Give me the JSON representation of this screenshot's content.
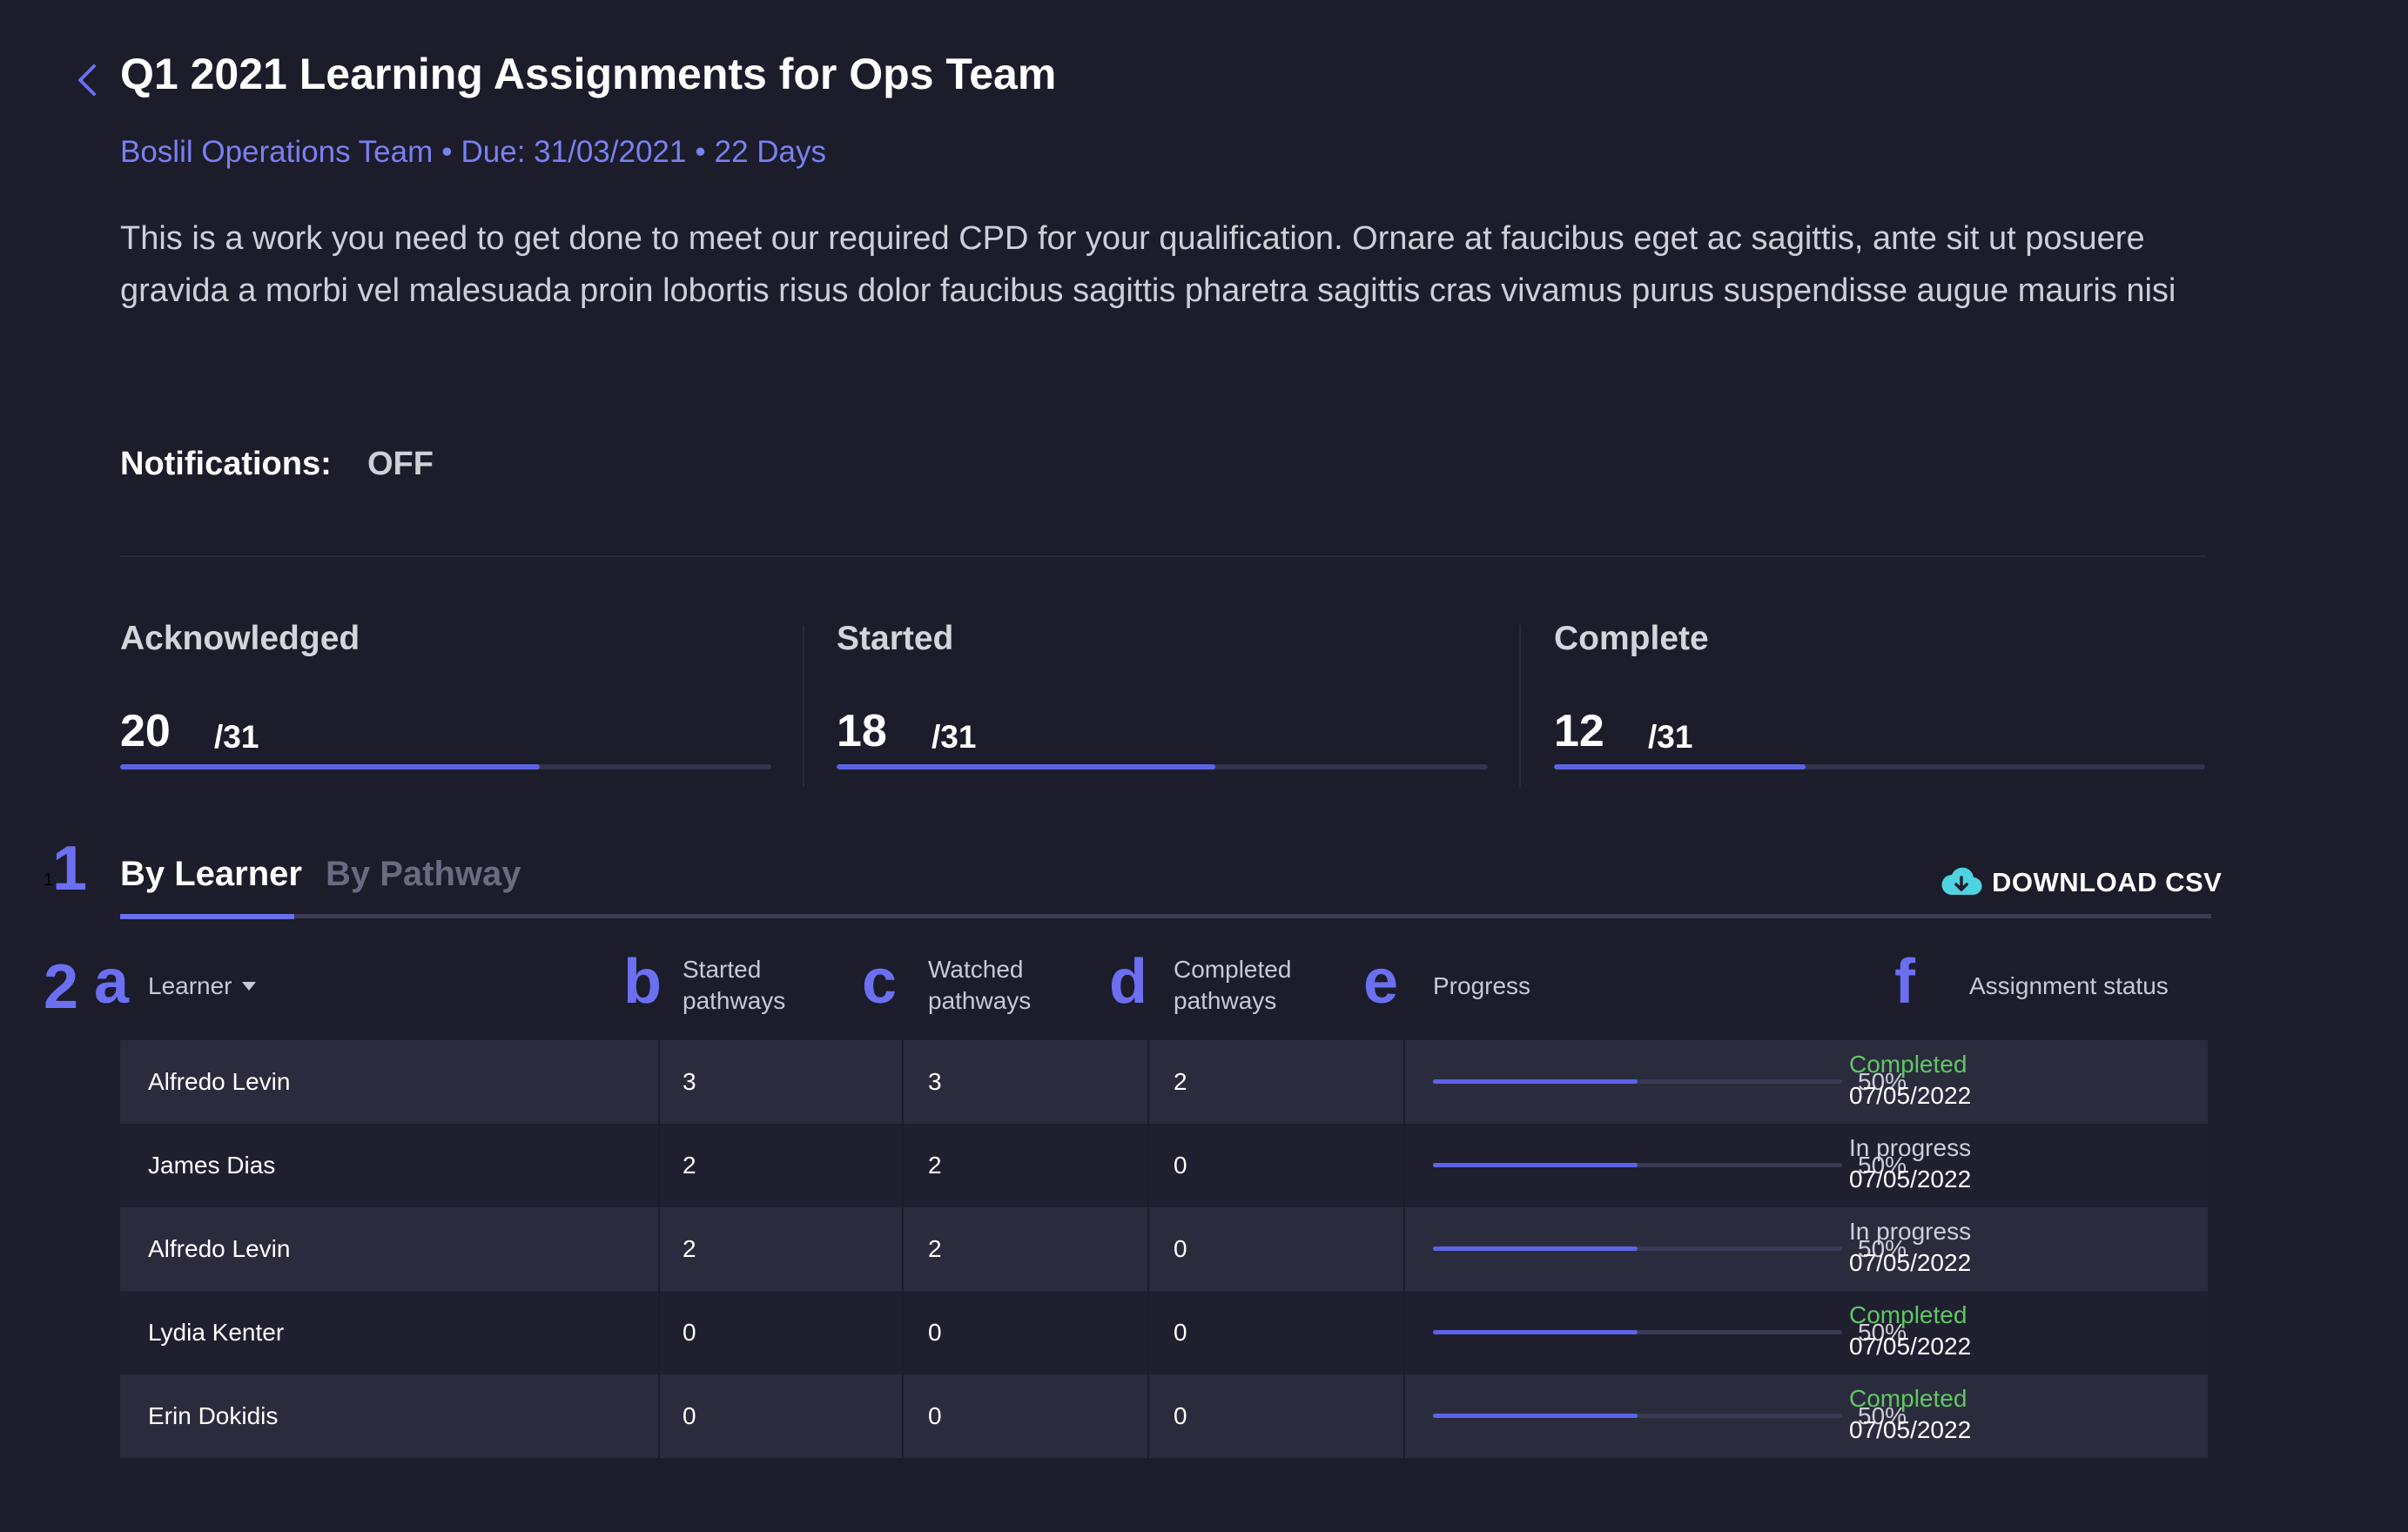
{
  "header": {
    "title": "Q1 2021 Learning Assignments for Ops Team",
    "team": "Boslil Operations Team",
    "due": "Due: 31/03/2021",
    "days": "22 Days",
    "separator": "•",
    "description": "This is a work you need to get done to meet our required CPD for your qualification. Ornare at faucibus eget ac sagittis, ante sit ut posuere gravida a morbi vel malesuada proin lobortis risus dolor faucibus sagittis pharetra sagittis cras vivamus purus suspendisse augue mauris nisi",
    "notifications_label": "Notifications:",
    "notifications_value": "OFF",
    "accent_color": "#7b80ef"
  },
  "stats": [
    {
      "label": "Acknowledged",
      "value": "20",
      "total": "/31",
      "fraction": 0.645
    },
    {
      "label": "Started",
      "value": "18",
      "total": "/31",
      "fraction": 0.581
    },
    {
      "label": "Complete",
      "value": "12",
      "total": "/31",
      "fraction": 0.387
    }
  ],
  "tabs": {
    "by_learner": "By Learner",
    "by_pathway": "By Pathway",
    "active": "by_learner",
    "download_csv": "DOWNLOAD CSV",
    "download_icon": "cloud-download-icon"
  },
  "annotations": {
    "m1": "1",
    "m1_small": "1",
    "m2": "2",
    "a": "a",
    "b": "b",
    "c": "c",
    "d": "d",
    "e": "e",
    "f": "f"
  },
  "table": {
    "headers": {
      "learner": "Learner",
      "started_1": "Started",
      "started_2": "pathways",
      "watched_1": "Watched",
      "watched_2": "pathways",
      "completed_1": "Completed",
      "completed_2": "pathways",
      "progress": "Progress",
      "status": "Assignment status"
    },
    "rows": [
      {
        "learner": "Alfredo Levin",
        "started": "3",
        "watched": "3",
        "completed": "2",
        "progress": 0.5,
        "progress_label": "50%",
        "status": "Completed",
        "status_type": "completed",
        "date": "07/05/2022"
      },
      {
        "learner": "James Dias",
        "started": "2",
        "watched": "2",
        "completed": "0",
        "progress": 0.5,
        "progress_label": "50%",
        "status": "In progress",
        "status_type": "inprogress",
        "date": "07/05/2022"
      },
      {
        "learner": "Alfredo Levin",
        "started": "2",
        "watched": "2",
        "completed": "0",
        "progress": 0.5,
        "progress_label": "50%",
        "status": "In progress",
        "status_type": "inprogress",
        "date": "07/05/2022"
      },
      {
        "learner": "Lydia Kenter",
        "started": "0",
        "watched": "0",
        "completed": "0",
        "progress": 0.5,
        "progress_label": "50%",
        "status": "Completed",
        "status_type": "completed",
        "date": "07/05/2022"
      },
      {
        "learner": "Erin Dokidis",
        "started": "0",
        "watched": "0",
        "completed": "0",
        "progress": 0.5,
        "progress_label": "50%",
        "status": "Completed",
        "status_type": "completed",
        "date": "07/05/2022"
      }
    ],
    "colors": {
      "completed": "#5ec862",
      "inprogress": "#cfcfd8",
      "progress_fill": "#5d63e6"
    }
  }
}
